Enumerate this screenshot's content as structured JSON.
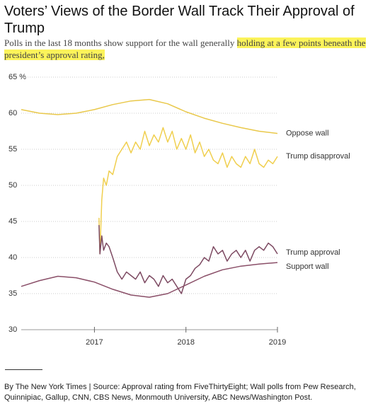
{
  "chart_data": {
    "type": "line",
    "title": "Voters’ Views of the Border Wall Track Their Approval of Trump",
    "subtitle": {
      "text": "Polls in the last 18 months show support for the wall generally",
      "highlight": "holding at a few points beneath the president’s approval rating,"
    },
    "source": "By The New York Times | Source: Approval rating from FiveThirtyEight; Wall polls from Pew Research, Quinnipiac, Gallup, CNN, CBS News, Monmouth University, ABC News/Washington Post.",
    "xlim": [
      2016.2,
      2019.0
    ],
    "xticks": [
      2017,
      2018,
      2019
    ],
    "ylim": [
      30,
      65
    ],
    "yticks": [
      30,
      35,
      40,
      45,
      50,
      55,
      60,
      {
        "value": 65,
        "label": "65 %"
      }
    ],
    "grid": true,
    "series": [
      {
        "name": "Oppose wall",
        "color": "#e9c84a",
        "x": [
          2016.2,
          2016.4,
          2016.6,
          2016.8,
          2017.0,
          2017.2,
          2017.4,
          2017.6,
          2017.8,
          2018.0,
          2018.2,
          2018.4,
          2018.6,
          2018.8,
          2019.0
        ],
        "values": [
          60.5,
          60.0,
          59.8,
          60.0,
          60.5,
          61.2,
          61.7,
          61.9,
          61.3,
          60.2,
          59.3,
          58.6,
          58.0,
          57.5,
          57.2
        ]
      },
      {
        "name": "Trump disapproval",
        "color": "#f0cf4f",
        "x": [
          2017.05,
          2017.06,
          2017.08,
          2017.1,
          2017.13,
          2017.16,
          2017.2,
          2017.25,
          2017.3,
          2017.35,
          2017.4,
          2017.45,
          2017.5,
          2017.55,
          2017.6,
          2017.65,
          2017.7,
          2017.75,
          2017.8,
          2017.85,
          2017.9,
          2017.95,
          2018.0,
          2018.05,
          2018.1,
          2018.15,
          2018.2,
          2018.25,
          2018.3,
          2018.35,
          2018.4,
          2018.45,
          2018.5,
          2018.55,
          2018.6,
          2018.65,
          2018.7,
          2018.75,
          2018.8,
          2018.85,
          2018.9,
          2018.95,
          2019.0
        ],
        "values": [
          45.5,
          40.5,
          48,
          51,
          50,
          52,
          51.5,
          54,
          55,
          56,
          54.5,
          56,
          55,
          57.5,
          55.5,
          57,
          56,
          58,
          56,
          57.5,
          55,
          56.5,
          55,
          57,
          54.5,
          56,
          54,
          55,
          53.5,
          53,
          54.5,
          52.5,
          54,
          53,
          52.5,
          54,
          53,
          55,
          53,
          52.5,
          53.5,
          53,
          54
        ]
      },
      {
        "name": "Trump approval",
        "color": "#7d4a62",
        "x": [
          2017.05,
          2017.06,
          2017.08,
          2017.1,
          2017.13,
          2017.16,
          2017.2,
          2017.25,
          2017.3,
          2017.35,
          2017.4,
          2017.45,
          2017.5,
          2017.55,
          2017.6,
          2017.65,
          2017.7,
          2017.75,
          2017.8,
          2017.85,
          2017.9,
          2017.95,
          2018.0,
          2018.05,
          2018.1,
          2018.15,
          2018.2,
          2018.25,
          2018.3,
          2018.35,
          2018.4,
          2018.45,
          2018.5,
          2018.55,
          2018.6,
          2018.65,
          2018.7,
          2018.75,
          2018.8,
          2018.85,
          2018.9,
          2018.95,
          2019.0
        ],
        "values": [
          44.5,
          40.5,
          43,
          41,
          42,
          41.5,
          40,
          38,
          37,
          38,
          37.5,
          37,
          38,
          36.5,
          37.5,
          37,
          36,
          37.5,
          36.5,
          37,
          36,
          35,
          37,
          37.5,
          38.5,
          39,
          40,
          39.5,
          41.5,
          40.5,
          41,
          39.5,
          40.5,
          41,
          40,
          41,
          39.5,
          41,
          41.5,
          41,
          42,
          41.5,
          40.5
        ]
      },
      {
        "name": "Support wall",
        "color": "#8a4f68",
        "x": [
          2016.2,
          2016.4,
          2016.6,
          2016.8,
          2017.0,
          2017.2,
          2017.4,
          2017.6,
          2017.8,
          2018.0,
          2018.2,
          2018.4,
          2018.6,
          2018.8,
          2019.0
        ],
        "values": [
          36.0,
          36.8,
          37.4,
          37.2,
          36.6,
          35.6,
          34.8,
          34.5,
          35.0,
          36.2,
          37.4,
          38.3,
          38.8,
          39.1,
          39.3
        ]
      }
    ]
  }
}
